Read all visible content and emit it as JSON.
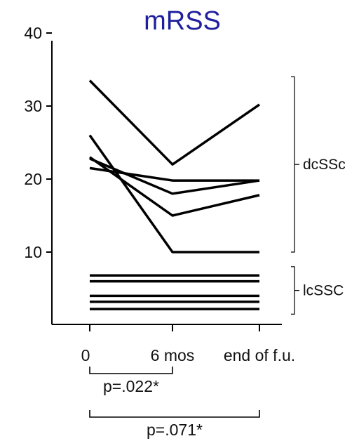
{
  "chart_data": {
    "type": "line",
    "title": "mRSS",
    "xlabel": "",
    "ylabel": "",
    "x": [
      "0",
      "6 mos",
      "end of f.u."
    ],
    "yticks": [
      10,
      20,
      30,
      40
    ],
    "ylim": [
      2,
      41
    ],
    "grid": false,
    "series": [
      {
        "values": [
          33.5,
          22,
          30.2
        ]
      },
      {
        "values": [
          26,
          10,
          10
        ]
      },
      {
        "values": [
          23,
          15,
          17.8
        ]
      },
      {
        "values": [
          22.8,
          18,
          19.8
        ]
      },
      {
        "values": [
          21.5,
          19.8,
          19.8
        ]
      },
      {
        "values": [
          6.8,
          6.8,
          6.8
        ]
      },
      {
        "values": [
          6.0,
          6.0,
          6.0
        ]
      },
      {
        "values": [
          4.0,
          4.0,
          4.0
        ]
      },
      {
        "values": [
          3.2,
          3.2,
          3.2
        ]
      },
      {
        "values": [
          2.2,
          2.2,
          2.2
        ]
      }
    ],
    "groups": [
      {
        "label": "dcSSc",
        "series": [
          0,
          1,
          2,
          3,
          4
        ],
        "yrange": [
          10,
          34
        ]
      },
      {
        "label": "lcSSC",
        "series": [
          5,
          6,
          7,
          8,
          9
        ],
        "yrange": [
          1.5,
          8
        ]
      }
    ],
    "comparisons": [
      {
        "from": 0,
        "to": 1,
        "label": "p=.022*"
      },
      {
        "from": 0,
        "to": 2,
        "label": "p=.071*"
      }
    ]
  }
}
